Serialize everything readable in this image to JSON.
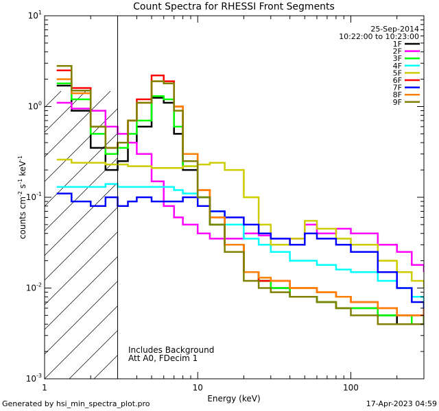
{
  "chart_data": {
    "type": "line",
    "title": "Count Spectra for RHESSI Front Segments",
    "date": "25-Sep-2014",
    "time_range": "10:22:00 to 10:23:00",
    "xlabel": "Energy (keV)",
    "ylabel": "counts cm",
    "ylabel_sup1": "-2",
    "ylabel_mid": " s",
    "ylabel_sup2": "-1",
    "ylabel_end": " keV",
    "ylabel_sup3": "-1",
    "xscale": "log",
    "yscale": "log",
    "xlim": [
      1,
      300
    ],
    "ylim": [
      0.001,
      10
    ],
    "x_tick_labels": [
      {
        "value": 1,
        "label": "1"
      },
      {
        "value": 10,
        "label": "10"
      },
      {
        "value": 100,
        "label": "100"
      }
    ],
    "y_tick_labels": [
      {
        "value": 0.001,
        "base": "10",
        "exp": "-3"
      },
      {
        "value": 0.01,
        "base": "10",
        "exp": "-2"
      },
      {
        "value": 0.1,
        "base": "10",
        "exp": "-1"
      },
      {
        "value": 1,
        "base": "10",
        "exp": "0"
      },
      {
        "value": 10,
        "base": "10",
        "exp": "1"
      }
    ],
    "threshold_keV": 3,
    "annotations": [
      "Includes Background",
      "Att A0, FDecim 1"
    ],
    "legend_position": "top-right",
    "series": [
      {
        "name": "1F",
        "color": "#000000",
        "energy": [
          1.2,
          1.5,
          2,
          2.5,
          3,
          3.5,
          4,
          5,
          6,
          7,
          8,
          10,
          12,
          15,
          20,
          25,
          30,
          40,
          50,
          60,
          80,
          100,
          150,
          200,
          250,
          300
        ],
        "values": [
          1.7,
          0.9,
          0.35,
          0.2,
          0.25,
          0.4,
          0.6,
          1.25,
          1.1,
          0.5,
          0.2,
          0.1,
          0.05,
          0.03,
          0.015,
          0.012,
          0.01,
          0.008,
          0.008,
          0.007,
          0.006,
          0.006,
          0.005,
          0.004,
          0.004,
          0.005
        ]
      },
      {
        "name": "2F",
        "color": "#ff00ff",
        "energy": [
          1.2,
          1.5,
          2,
          2.5,
          3,
          3.5,
          4,
          5,
          6,
          7,
          8,
          10,
          12,
          15,
          20,
          25,
          30,
          40,
          50,
          60,
          80,
          100,
          150,
          200,
          250,
          300
        ],
        "values": [
          1.1,
          0.95,
          0.9,
          0.6,
          0.5,
          0.4,
          0.3,
          0.15,
          0.08,
          0.06,
          0.05,
          0.04,
          0.035,
          0.035,
          0.04,
          0.038,
          0.035,
          0.035,
          0.05,
          0.04,
          0.045,
          0.04,
          0.03,
          0.025,
          0.018,
          0.015
        ]
      },
      {
        "name": "3F",
        "color": "#00ff00",
        "energy": [
          1.2,
          1.5,
          2,
          2.5,
          3,
          3.5,
          4,
          5,
          6,
          7,
          8,
          10,
          12,
          15,
          20,
          25,
          30,
          40,
          50,
          60,
          80,
          100,
          150,
          200,
          250,
          300
        ],
        "values": [
          1.8,
          1.2,
          0.5,
          0.3,
          0.35,
          0.5,
          0.7,
          1.3,
          1.2,
          0.6,
          0.22,
          0.1,
          0.05,
          0.03,
          0.015,
          0.012,
          0.01,
          0.008,
          0.008,
          0.007,
          0.006,
          0.006,
          0.005,
          0.005,
          0.004,
          0.005
        ]
      },
      {
        "name": "4F",
        "color": "#00ffff",
        "energy": [
          1.2,
          1.5,
          2,
          2.5,
          3,
          3.5,
          4,
          5,
          6,
          7,
          8,
          10,
          12,
          15,
          20,
          25,
          30,
          40,
          50,
          60,
          80,
          100,
          150,
          200,
          250,
          300
        ],
        "values": [
          0.13,
          0.13,
          0.13,
          0.14,
          0.13,
          0.13,
          0.13,
          0.13,
          0.13,
          0.12,
          0.11,
          0.1,
          0.07,
          0.05,
          0.035,
          0.03,
          0.025,
          0.02,
          0.02,
          0.018,
          0.016,
          0.015,
          0.012,
          0.01,
          0.008,
          0.006
        ]
      },
      {
        "name": "5F",
        "color": "#cccc00",
        "energy": [
          1.2,
          1.5,
          2,
          2.5,
          3,
          3.5,
          4,
          5,
          6,
          7,
          8,
          10,
          12,
          15,
          20,
          25,
          30,
          40,
          50,
          60,
          80,
          100,
          150,
          200,
          250,
          300
        ],
        "values": [
          0.26,
          0.24,
          0.24,
          0.23,
          0.23,
          0.22,
          0.22,
          0.21,
          0.21,
          0.21,
          0.22,
          0.23,
          0.24,
          0.2,
          0.1,
          0.05,
          0.03,
          0.035,
          0.055,
          0.045,
          0.035,
          0.03,
          0.02,
          0.015,
          0.012,
          0.01
        ]
      },
      {
        "name": "6F",
        "color": "#ff0000",
        "energy": [
          1.2,
          1.5,
          2,
          2.5,
          3,
          3.5,
          4,
          5,
          6,
          7,
          8,
          10,
          12,
          15,
          20,
          25,
          30,
          40,
          50,
          60,
          80,
          100,
          150,
          200,
          250,
          300
        ],
        "values": [
          2.5,
          1.6,
          0.6,
          0.35,
          0.4,
          0.7,
          1.2,
          2.2,
          1.9,
          1.0,
          0.3,
          0.12,
          0.06,
          0.03,
          0.015,
          0.012,
          0.012,
          0.01,
          0.01,
          0.009,
          0.008,
          0.007,
          0.006,
          0.005,
          0.005,
          0.006
        ]
      },
      {
        "name": "7F",
        "color": "#0000ff",
        "energy": [
          1.2,
          1.5,
          2,
          2.5,
          3,
          3.5,
          4,
          5,
          6,
          7,
          8,
          10,
          12,
          15,
          20,
          25,
          30,
          40,
          50,
          60,
          80,
          100,
          150,
          200,
          250,
          300
        ],
        "values": [
          0.11,
          0.09,
          0.08,
          0.1,
          0.08,
          0.09,
          0.1,
          0.09,
          0.09,
          0.09,
          0.1,
          0.08,
          0.07,
          0.06,
          0.05,
          0.04,
          0.035,
          0.03,
          0.04,
          0.035,
          0.03,
          0.025,
          0.015,
          0.01,
          0.007,
          0.005
        ]
      },
      {
        "name": "8F",
        "color": "#ff8000",
        "energy": [
          1.2,
          1.5,
          2,
          2.5,
          3,
          3.5,
          4,
          5,
          6,
          7,
          8,
          10,
          12,
          15,
          20,
          25,
          30,
          40,
          50,
          60,
          80,
          100,
          150,
          200,
          250,
          300
        ],
        "values": [
          2.0,
          1.4,
          0.6,
          0.35,
          0.4,
          0.7,
          1.1,
          1.9,
          1.8,
          1.0,
          0.3,
          0.12,
          0.06,
          0.03,
          0.015,
          0.013,
          0.012,
          0.01,
          0.01,
          0.009,
          0.008,
          0.007,
          0.006,
          0.005,
          0.005,
          0.006
        ]
      },
      {
        "name": "9F",
        "color": "#808000",
        "energy": [
          1.2,
          1.5,
          2,
          2.5,
          3,
          3.5,
          4,
          5,
          6,
          7,
          8,
          10,
          12,
          15,
          20,
          25,
          30,
          40,
          50,
          60,
          80,
          100,
          150,
          200,
          250,
          300
        ],
        "values": [
          2.8,
          1.5,
          0.6,
          0.35,
          0.4,
          0.7,
          1.1,
          1.9,
          1.8,
          0.9,
          0.25,
          0.1,
          0.05,
          0.025,
          0.012,
          0.01,
          0.009,
          0.008,
          0.008,
          0.007,
          0.006,
          0.005,
          0.004,
          0.004,
          0.004,
          0.005
        ]
      }
    ]
  },
  "footer": {
    "generated_by": "Generated by hsi_min_spectra_plot.pro",
    "timestamp": "17-Apr-2023 04:59"
  }
}
